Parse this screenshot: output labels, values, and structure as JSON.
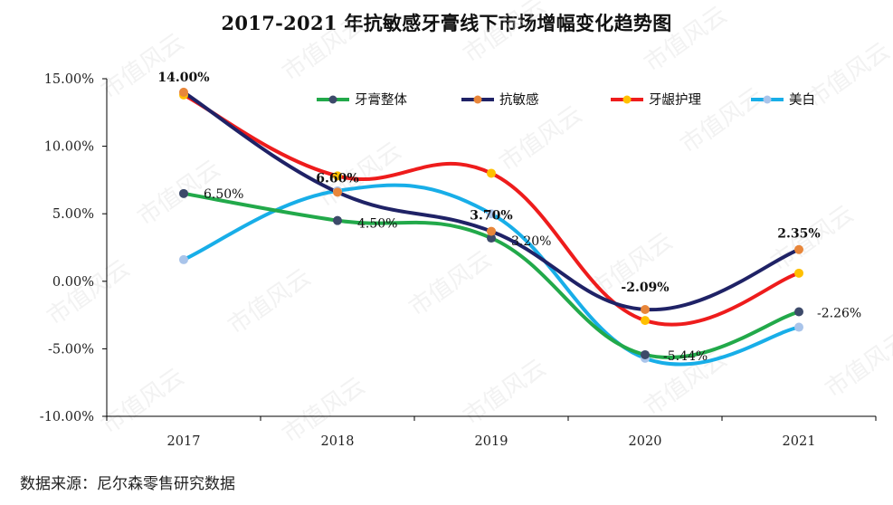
{
  "title": "2017-2021 年抗敏感牙膏线下市场增幅变化趋势图",
  "source": "数据来源：尼尔森零售研究数据",
  "watermark": "市值风云",
  "chart_data": {
    "type": "line",
    "title": "2017-2021 年抗敏感牙膏线下市场增幅变化趋势图",
    "xlabel": "",
    "ylabel": "",
    "categories": [
      "2017",
      "2018",
      "2019",
      "2020",
      "2021"
    ],
    "ylim": [
      -10,
      15
    ],
    "yticks": [
      -10,
      -5,
      0,
      5,
      10,
      15
    ],
    "ytick_labels": [
      "-10.00%",
      "-5.00%",
      "0.00%",
      "5.00%",
      "10.00%",
      "15.00%"
    ],
    "grid": false,
    "legend_position": "top-right",
    "series": [
      {
        "name": "牙膏整体",
        "values": [
          6.5,
          4.5,
          3.2,
          -5.44,
          -2.26
        ],
        "line_color": "#22a94a",
        "marker_color": "#3d4a6a",
        "labels": [
          "6.50%",
          "4.50%",
          "3.20%",
          "-5.44%",
          "-2.26%"
        ],
        "label_bold": false
      },
      {
        "name": "抗敏感",
        "values": [
          14.0,
          6.6,
          3.7,
          -2.09,
          2.35
        ],
        "line_color": "#1f2266",
        "marker_color": "#e8863a",
        "labels": [
          "14.00%",
          "6.60%",
          "3.70%",
          "-2.09%",
          "2.35%"
        ],
        "label_bold": true
      },
      {
        "name": "牙龈护理",
        "values": [
          13.8,
          7.8,
          8.0,
          -2.9,
          0.6
        ],
        "line_color": "#ee1c1c",
        "marker_color": "#ffc000",
        "labels": [],
        "label_bold": false
      },
      {
        "name": "美白",
        "values": [
          1.6,
          6.7,
          5.0,
          -5.7,
          -3.4
        ],
        "line_color": "#18aee8",
        "marker_color": "#a9c4ea",
        "labels": [],
        "label_bold": false
      }
    ]
  }
}
